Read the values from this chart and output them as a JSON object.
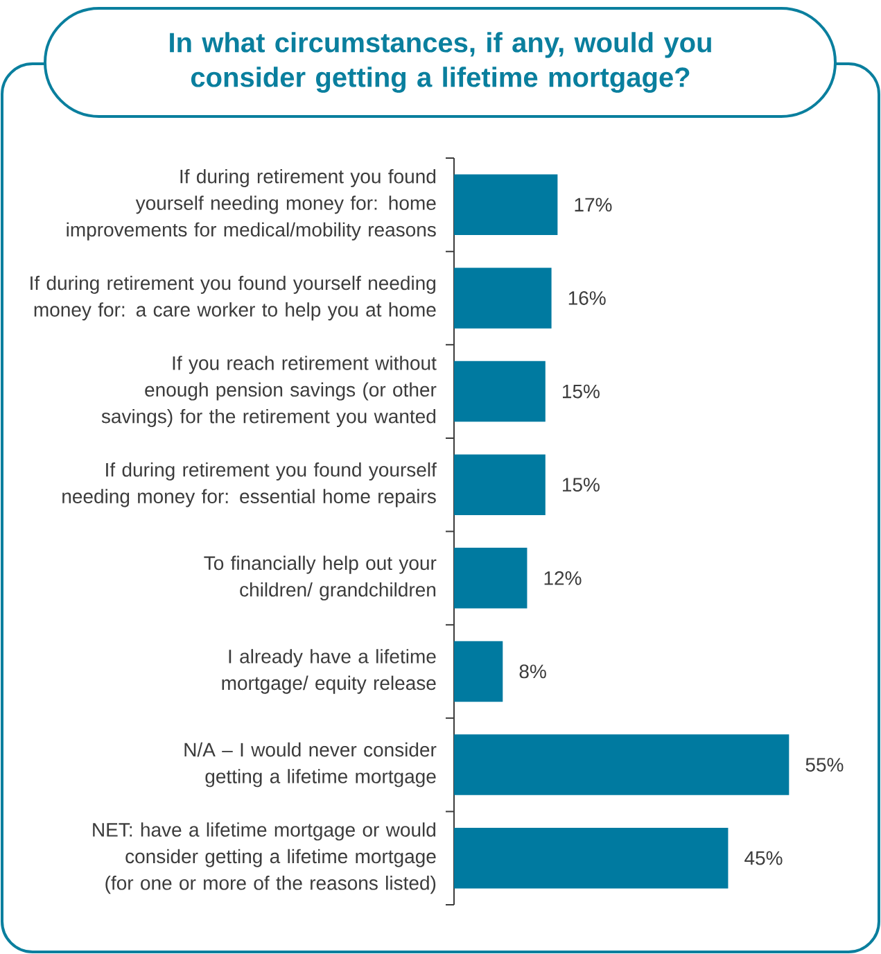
{
  "chart_data": {
    "type": "bar",
    "orientation": "horizontal",
    "title": "In what circumstances, if any, would you consider getting a lifetime mortgage?",
    "categories": [
      "If during retirement you found yourself needing money for: home improvements for medical/mobility reasons",
      "If during retirement you found yourself needing money for: a care worker to help you at home",
      "If you reach retirement without enough pension savings (or other savings) for the retirement you wanted",
      "If during retirement you found yourself needing money for: essential home repairs",
      "To financially help out your children/ grandchildren",
      "I already have a lifetime mortgage/ equity release",
      "N/A – I would never consider getting a lifetime mortgage",
      "NET: have a lifetime mortgage or would consider getting a lifetime mortgage (for one or more of the reasons listed)"
    ],
    "values": [
      17,
      16,
      15,
      15,
      12,
      8,
      55,
      45
    ],
    "value_labels": [
      "17%",
      "16%",
      "15%",
      "15%",
      "12%",
      "8%",
      "55%",
      "45%"
    ],
    "color": "#007aa0"
  }
}
